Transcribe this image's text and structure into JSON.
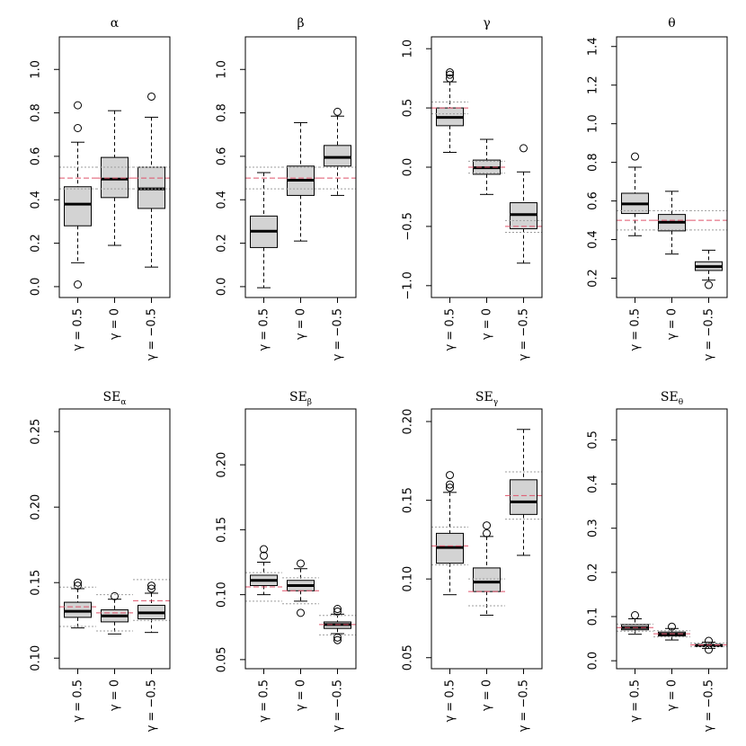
{
  "colors": {
    "box_fill": "#d3d3d3",
    "truth_line": "#df536b",
    "band_line": "#9e9e9e",
    "stroke": "#000000",
    "bg": "#ffffff"
  },
  "group_labels": [
    "γ = 0.5",
    "γ = 0",
    "γ = −0.5"
  ],
  "chart_data": [
    {
      "type": "boxplot",
      "title": "α",
      "title_sub": "",
      "ylim": [
        -0.05,
        1.15
      ],
      "yticks": [
        "0.0",
        "0.2",
        "0.4",
        "0.6",
        "0.8",
        "1.0"
      ],
      "boxes": [
        {
          "group": "γ = 0.5",
          "whisker_low": 0.11,
          "q1": 0.28,
          "median": 0.38,
          "q3": 0.46,
          "whisker_high": 0.665,
          "outliers": [
            0.73,
            0.835,
            0.01
          ]
        },
        {
          "group": "γ = 0",
          "whisker_low": 0.19,
          "q1": 0.41,
          "median": 0.495,
          "q3": 0.595,
          "whisker_high": 0.81,
          "outliers": []
        },
        {
          "group": "γ = −0.5",
          "whisker_low": 0.09,
          "q1": 0.36,
          "median": 0.45,
          "q3": 0.55,
          "whisker_high": 0.78,
          "outliers": [
            0.875
          ]
        }
      ],
      "true_line": [
        0.5,
        0.5,
        0.5
      ],
      "band_upper": [
        0.55,
        0.55,
        0.55
      ],
      "band_lower": [
        0.45,
        0.45,
        0.45
      ]
    },
    {
      "type": "boxplot",
      "title": "β",
      "title_sub": "",
      "ylim": [
        -0.05,
        1.15
      ],
      "yticks": [
        "0.0",
        "0.2",
        "0.4",
        "0.6",
        "0.8",
        "1.0"
      ],
      "boxes": [
        {
          "group": "γ = 0.5",
          "whisker_low": -0.005,
          "q1": 0.18,
          "median": 0.255,
          "q3": 0.325,
          "whisker_high": 0.525,
          "outliers": []
        },
        {
          "group": "γ = 0",
          "whisker_low": 0.21,
          "q1": 0.42,
          "median": 0.49,
          "q3": 0.555,
          "whisker_high": 0.755,
          "outliers": []
        },
        {
          "group": "γ = −0.5",
          "whisker_low": 0.42,
          "q1": 0.555,
          "median": 0.595,
          "q3": 0.65,
          "whisker_high": 0.785,
          "outliers": [
            0.805
          ]
        }
      ],
      "true_line": [
        0.5,
        0.5,
        0.5
      ],
      "band_upper": [
        0.55,
        0.55,
        0.55
      ],
      "band_lower": [
        0.45,
        0.45,
        0.45
      ]
    },
    {
      "type": "boxplot",
      "title": "γ",
      "title_sub": "",
      "ylim": [
        -1.1,
        1.1
      ],
      "yticks": [
        "−1.0",
        "−0.5",
        "0.0",
        "0.5",
        "1.0"
      ],
      "boxes": [
        {
          "group": "γ = 0.5",
          "whisker_low": 0.125,
          "q1": 0.35,
          "median": 0.42,
          "q3": 0.5,
          "whisker_high": 0.72,
          "outliers": [
            0.75,
            0.78,
            0.8
          ]
        },
        {
          "group": "γ = 0",
          "whisker_low": -0.23,
          "q1": -0.06,
          "median": -0.005,
          "q3": 0.06,
          "whisker_high": 0.235,
          "outliers": []
        },
        {
          "group": "γ = −0.5",
          "whisker_low": -0.81,
          "q1": -0.52,
          "median": -0.4,
          "q3": -0.3,
          "whisker_high": -0.04,
          "outliers": [
            0.16
          ]
        }
      ],
      "true_line": [
        0.5,
        0.0,
        -0.5
      ],
      "band_upper": [
        0.55,
        0.05,
        -0.45
      ],
      "band_lower": [
        0.45,
        -0.05,
        -0.55
      ]
    },
    {
      "type": "boxplot",
      "title": "θ",
      "title_sub": "",
      "ylim": [
        0.1,
        1.45
      ],
      "yticks": [
        "0.2",
        "0.4",
        "0.6",
        "0.8",
        "1.0",
        "1.2",
        "1.4"
      ],
      "boxes": [
        {
          "group": "γ = 0.5",
          "whisker_low": 0.42,
          "q1": 0.535,
          "median": 0.585,
          "q3": 0.64,
          "whisker_high": 0.775,
          "outliers": [
            0.83
          ]
        },
        {
          "group": "γ = 0",
          "whisker_low": 0.325,
          "q1": 0.445,
          "median": 0.49,
          "q3": 0.53,
          "whisker_high": 0.65,
          "outliers": []
        },
        {
          "group": "γ = −0.5",
          "whisker_low": 0.19,
          "q1": 0.24,
          "median": 0.26,
          "q3": 0.285,
          "whisker_high": 0.345,
          "outliers": [
            0.165
          ]
        }
      ],
      "true_line": [
        0.5,
        0.5,
        0.5
      ],
      "band_upper": [
        0.55,
        0.55,
        0.55
      ],
      "band_lower": [
        0.45,
        0.45,
        0.45
      ]
    },
    {
      "type": "boxplot",
      "title": "SE",
      "title_sub": "α",
      "ylim": [
        0.093,
        0.265
      ],
      "yticks": [
        "0.10",
        "0.15",
        "0.20",
        "0.25"
      ],
      "boxes": [
        {
          "group": "γ = 0.5",
          "whisker_low": 0.12,
          "q1": 0.127,
          "median": 0.131,
          "q3": 0.137,
          "whisker_high": 0.146,
          "outliers": [
            0.148,
            0.15
          ]
        },
        {
          "group": "γ = 0",
          "whisker_low": 0.116,
          "q1": 0.124,
          "median": 0.128,
          "q3": 0.132,
          "whisker_high": 0.139,
          "outliers": [
            0.141
          ]
        },
        {
          "group": "γ = −0.5",
          "whisker_low": 0.117,
          "q1": 0.126,
          "median": 0.13,
          "q3": 0.135,
          "whisker_high": 0.143,
          "outliers": [
            0.146,
            0.148
          ]
        }
      ],
      "true_line": [
        0.134,
        0.13,
        0.138
      ],
      "band_upper": [
        0.147,
        0.142,
        0.152
      ],
      "band_lower": [
        0.121,
        0.118,
        0.125
      ]
    },
    {
      "type": "boxplot",
      "title": "SE",
      "title_sub": "β",
      "ylim": [
        0.043,
        0.243
      ],
      "yticks": [
        "0.05",
        "0.10",
        "0.15",
        "0.20"
      ],
      "boxes": [
        {
          "group": "γ = 0.5",
          "whisker_low": 0.1,
          "q1": 0.107,
          "median": 0.111,
          "q3": 0.115,
          "whisker_high": 0.125,
          "outliers": [
            0.13,
            0.135
          ]
        },
        {
          "group": "γ = 0",
          "whisker_low": 0.095,
          "q1": 0.103,
          "median": 0.107,
          "q3": 0.111,
          "whisker_high": 0.12,
          "outliers": [
            0.124,
            0.086
          ]
        },
        {
          "group": "γ = −0.5",
          "whisker_low": 0.07,
          "q1": 0.074,
          "median": 0.077,
          "q3": 0.079,
          "whisker_high": 0.085,
          "outliers": [
            0.087,
            0.089,
            0.065,
            0.067
          ]
        }
      ],
      "true_line": [
        0.106,
        0.103,
        0.077
      ],
      "band_upper": [
        0.117,
        0.113,
        0.084
      ],
      "band_lower": [
        0.095,
        0.093,
        0.069
      ]
    },
    {
      "type": "boxplot",
      "title": "SE",
      "title_sub": "γ",
      "ylim": [
        0.043,
        0.208
      ],
      "yticks": [
        "0.05",
        "0.10",
        "0.15",
        "0.20"
      ],
      "boxes": [
        {
          "group": "γ = 0.5",
          "whisker_low": 0.09,
          "q1": 0.11,
          "median": 0.12,
          "q3": 0.129,
          "whisker_high": 0.155,
          "outliers": [
            0.158,
            0.16,
            0.166
          ]
        },
        {
          "group": "γ = 0",
          "whisker_low": 0.077,
          "q1": 0.092,
          "median": 0.098,
          "q3": 0.107,
          "whisker_high": 0.127,
          "outliers": [
            0.129,
            0.134
          ]
        },
        {
          "group": "γ = −0.5",
          "whisker_low": 0.115,
          "q1": 0.141,
          "median": 0.149,
          "q3": 0.163,
          "whisker_high": 0.195,
          "outliers": []
        }
      ],
      "true_line": [
        0.121,
        0.092,
        0.153
      ],
      "band_upper": [
        0.133,
        0.1,
        0.168
      ],
      "band_lower": [
        0.109,
        0.083,
        0.138
      ]
    },
    {
      "type": "boxplot",
      "title": "SE",
      "title_sub": "θ",
      "ylim": [
        -0.018,
        0.57
      ],
      "yticks": [
        "0.0",
        "0.1",
        "0.2",
        "0.3",
        "0.4",
        "0.5"
      ],
      "boxes": [
        {
          "group": "γ = 0.5",
          "whisker_low": 0.06,
          "q1": 0.07,
          "median": 0.075,
          "q3": 0.082,
          "whisker_high": 0.095,
          "outliers": [
            0.103
          ]
        },
        {
          "group": "γ = 0",
          "whisker_low": 0.047,
          "q1": 0.056,
          "median": 0.06,
          "q3": 0.065,
          "whisker_high": 0.073,
          "outliers": [
            0.077
          ]
        },
        {
          "group": "γ = −0.5",
          "whisker_low": 0.028,
          "q1": 0.032,
          "median": 0.034,
          "q3": 0.037,
          "whisker_high": 0.042,
          "outliers": [
            0.045,
            0.025
          ]
        }
      ],
      "true_line": [
        0.075,
        0.061,
        0.036
      ],
      "band_upper": [
        0.083,
        0.068,
        0.04
      ],
      "band_lower": [
        0.067,
        0.054,
        0.032
      ]
    }
  ]
}
